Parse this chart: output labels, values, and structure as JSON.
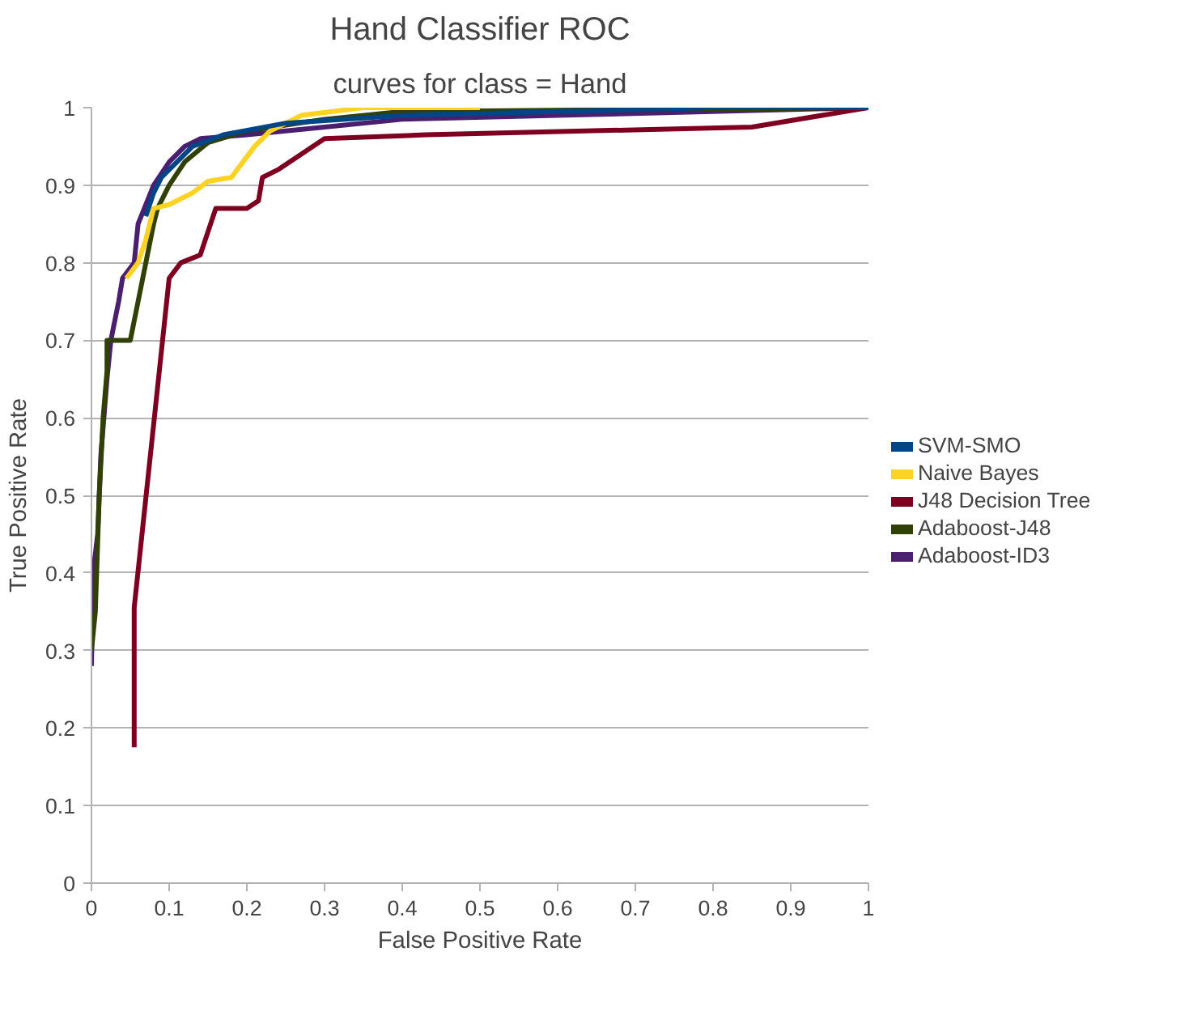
{
  "chart_data": {
    "type": "line",
    "title": "Hand Classifier ROC",
    "subtitle": "curves for class = Hand",
    "xlabel": "False Positive Rate",
    "ylabel": "True Positive Rate",
    "xlim": [
      0,
      1
    ],
    "ylim": [
      0,
      1
    ],
    "xticks": [
      0,
      0.1,
      0.2,
      0.3,
      0.4,
      0.5,
      0.6,
      0.7,
      0.8,
      0.9,
      1
    ],
    "yticks": [
      0,
      0.1,
      0.2,
      0.3,
      0.4,
      0.5,
      0.6,
      0.7,
      0.8,
      0.9,
      1
    ],
    "grid": "y",
    "legend": "right",
    "marker": "none",
    "line_style": "solid",
    "series": [
      {
        "name": "SVM-SMO",
        "color": "#004586",
        "x": [
          0.07,
          0.08,
          0.09,
          0.11,
          0.13,
          0.17,
          0.25,
          0.4,
          0.6,
          0.8,
          1
        ],
        "values": [
          0.86,
          0.89,
          0.91,
          0.93,
          0.95,
          0.965,
          0.98,
          0.99,
          0.995,
          1,
          1
        ]
      },
      {
        "name": "Naive Bayes",
        "color": "#ffd320",
        "x": [
          0.045,
          0.06,
          0.07,
          0.08,
          0.1,
          0.13,
          0.15,
          0.18,
          0.21,
          0.23,
          0.27,
          0.35,
          0.5
        ],
        "values": [
          0.78,
          0.8,
          0.83,
          0.87,
          0.875,
          0.89,
          0.905,
          0.91,
          0.95,
          0.97,
          0.99,
          1,
          1
        ]
      },
      {
        "name": "J48 Decision Tree",
        "color": "#7e0021",
        "x": [
          0.055,
          0.055,
          0.1,
          0.115,
          0.14,
          0.16,
          0.2,
          0.215,
          0.22,
          0.24,
          0.27,
          0.3,
          0.43,
          0.85,
          1
        ],
        "values": [
          0.175,
          0.355,
          0.78,
          0.8,
          0.81,
          0.87,
          0.87,
          0.88,
          0.91,
          0.92,
          0.94,
          0.96,
          0.965,
          0.975,
          1
        ]
      },
      {
        "name": "Adaboost-J48",
        "color": "#314004",
        "x": [
          0,
          0.005,
          0.01,
          0.015,
          0.02,
          0.02,
          0.05,
          0.06,
          0.07,
          0.08,
          0.085,
          0.1,
          0.12,
          0.15,
          0.2,
          0.3,
          0.4,
          1
        ],
        "values": [
          0.3,
          0.35,
          0.5,
          0.6,
          0.66,
          0.7,
          0.7,
          0.75,
          0.8,
          0.85,
          0.87,
          0.9,
          0.93,
          0.955,
          0.97,
          0.985,
          0.995,
          1
        ]
      },
      {
        "name": "Adaboost-ID3",
        "color": "#4b1f6f",
        "x": [
          0,
          0.002,
          0.008,
          0.012,
          0.02,
          0.025,
          0.035,
          0.04,
          0.055,
          0.06,
          0.08,
          0.1,
          0.12,
          0.14,
          0.2,
          0.3,
          0.4,
          0.6,
          1
        ],
        "values": [
          0.28,
          0.4,
          0.45,
          0.55,
          0.65,
          0.7,
          0.75,
          0.78,
          0.8,
          0.85,
          0.9,
          0.93,
          0.95,
          0.96,
          0.965,
          0.975,
          0.985,
          0.99,
          1
        ]
      }
    ]
  }
}
